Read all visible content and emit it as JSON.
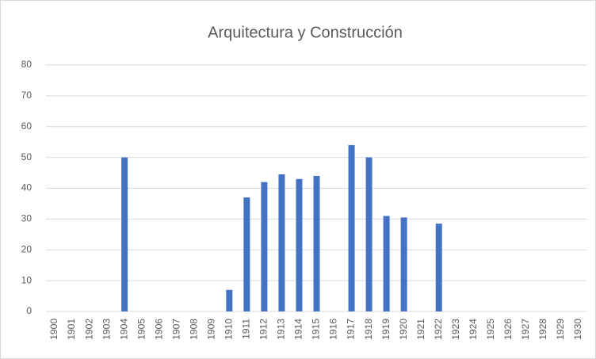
{
  "chart_data": {
    "type": "bar",
    "title": "Arquitectura y Construcción",
    "categories": [
      "1900",
      "1901",
      "1902",
      "1903",
      "1904",
      "1905",
      "1906",
      "1907",
      "1908",
      "1909",
      "1910",
      "1911",
      "1912",
      "1913",
      "1914",
      "1915",
      "1916",
      "1917",
      "1918",
      "1919",
      "1920",
      "1921",
      "1922",
      "1923",
      "1924",
      "1925",
      "1926",
      "1927",
      "1928",
      "1929",
      "1930"
    ],
    "values": [
      null,
      null,
      null,
      null,
      50,
      null,
      null,
      null,
      null,
      null,
      7,
      37,
      42,
      44.5,
      43,
      44,
      null,
      54,
      50,
      31,
      30.5,
      null,
      28.5,
      null,
      null,
      null,
      null,
      null,
      null,
      null,
      null
    ],
    "color": "#4472c4",
    "ylim": [
      0,
      80
    ],
    "yticks": [
      0,
      10,
      20,
      30,
      40,
      50,
      60,
      70,
      80
    ],
    "grid": true
  }
}
